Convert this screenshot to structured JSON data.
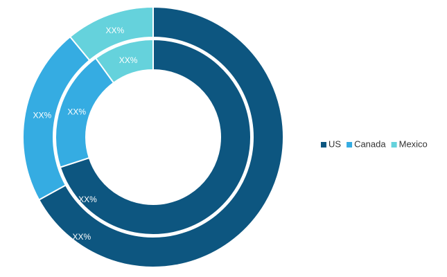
{
  "chart_data": {
    "type": "donut",
    "categories": [
      "US",
      "Canada",
      "Mexico"
    ],
    "colors": [
      "#0d5680",
      "#35ace2",
      "#65d2dc"
    ],
    "rings": [
      {
        "values": [
          70,
          20,
          10
        ],
        "value_labels": [
          "XX%",
          "XX%",
          "XX%"
        ]
      },
      {
        "values": [
          67,
          22,
          11
        ],
        "value_labels": [
          "XX%",
          "XX%",
          "XX%"
        ]
      }
    ],
    "legend": "right"
  }
}
